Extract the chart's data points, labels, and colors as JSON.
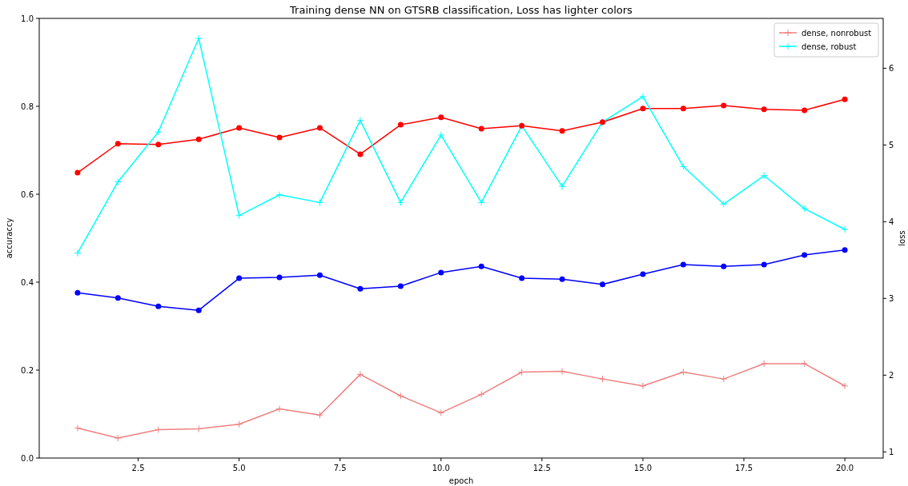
{
  "chart_data": {
    "type": "line",
    "title": "Training dense NN on GTSRB classification, Loss has lighter colors",
    "xlabel": "epoch",
    "ylabel": "accuraccy",
    "y2label": "loss",
    "x": [
      1,
      2,
      3,
      4,
      5,
      6,
      7,
      8,
      9,
      10,
      11,
      12,
      13,
      14,
      15,
      16,
      17,
      18,
      19,
      20
    ],
    "xlim": [
      0.05,
      20.95
    ],
    "xticks": [
      {
        "value": 2.5,
        "label": "2.5"
      },
      {
        "value": 5,
        "label": "5.0"
      },
      {
        "value": 7.5,
        "label": "7.5"
      },
      {
        "value": 10,
        "label": "10.0"
      },
      {
        "value": 12.5,
        "label": "12.5"
      },
      {
        "value": 15,
        "label": "15.0"
      },
      {
        "value": 17.5,
        "label": "17.5"
      },
      {
        "value": 20,
        "label": "20.0"
      }
    ],
    "ylim": [
      0,
      1
    ],
    "yticks": [
      {
        "value": 0,
        "label": "0.0"
      },
      {
        "value": 0.2,
        "label": "0.2"
      },
      {
        "value": 0.4,
        "label": "0.4"
      },
      {
        "value": 0.6,
        "label": "0.6"
      },
      {
        "value": 0.8,
        "label": "0.8"
      },
      {
        "value": 1,
        "label": "1.0"
      }
    ],
    "y2lim": [
      0.92,
      6.65
    ],
    "y2ticks": [
      1,
      2,
      3,
      4,
      5,
      6
    ],
    "legend": "top right",
    "grid": false,
    "series": [
      {
        "color": "#ff0000",
        "marker": "circle",
        "values": [
          0.649,
          0.715,
          0.713,
          0.725,
          0.751,
          0.729,
          0.751,
          0.691,
          0.758,
          0.775,
          0.749,
          0.756,
          0.744,
          0.764,
          0.795,
          0.795,
          0.802,
          0.793,
          0.791,
          0.816
        ]
      },
      {
        "color": "#0000ff",
        "marker": "circle",
        "values": [
          0.376,
          0.364,
          0.345,
          0.336,
          0.409,
          0.411,
          0.416,
          0.385,
          0.391,
          0.422,
          0.436,
          0.409,
          0.407,
          0.395,
          0.418,
          0.44,
          0.436,
          0.44,
          0.462,
          0.473
        ]
      },
      {
        "name": "dense, nonrobust",
        "color": "#f08080",
        "marker": "cross",
        "axis": "y2",
        "values": [
          1.31,
          1.18,
          1.29,
          1.3,
          1.36,
          1.56,
          1.48,
          2.01,
          1.73,
          1.51,
          1.75,
          2.04,
          2.05,
          1.95,
          1.86,
          2.04,
          1.95,
          2.15,
          2.15,
          1.86
        ]
      },
      {
        "name": "dense, robust",
        "color": "#00ffff",
        "marker": "cross",
        "axis": "y2",
        "values": [
          3.59,
          4.52,
          5.17,
          6.39,
          4.08,
          4.35,
          4.25,
          5.32,
          4.25,
          5.13,
          4.25,
          5.25,
          4.46,
          5.3,
          5.63,
          4.72,
          4.23,
          4.6,
          4.17,
          3.9
        ]
      }
    ]
  }
}
